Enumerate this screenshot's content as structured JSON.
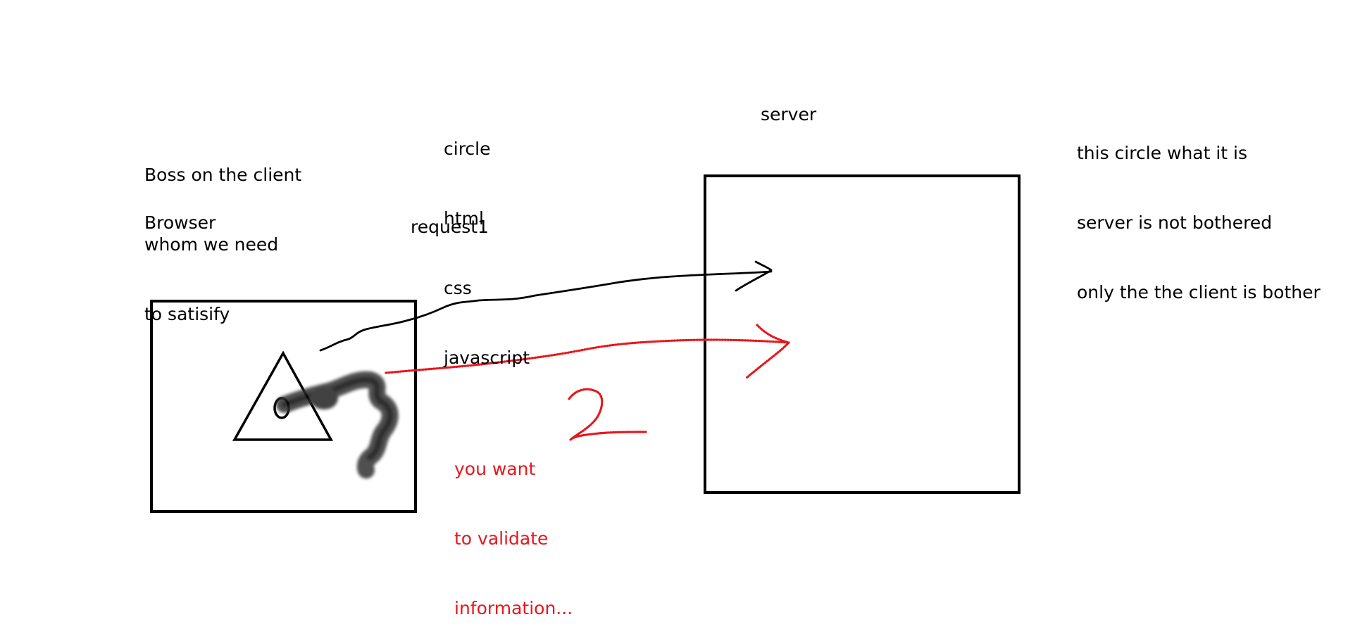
{
  "colors": {
    "ink": "#000000",
    "red_ink": "#e8161c",
    "background": "#ffffff"
  },
  "client_notes": {
    "lines": [
      "Boss on the client",
      "whom we need",
      "to satisify"
    ]
  },
  "browser_label": "Browser",
  "tech_list": {
    "lines": [
      "circle",
      "html",
      "css",
      "javascript"
    ]
  },
  "request_label": "request1",
  "server_label": "server",
  "server_notes": {
    "lines": [
      "this circle what it is",
      "server is not bothered",
      "only the the client is bother"
    ]
  },
  "validate_note": {
    "lines": [
      "you want",
      "to validate",
      "information..."
    ]
  },
  "step_number": "2"
}
